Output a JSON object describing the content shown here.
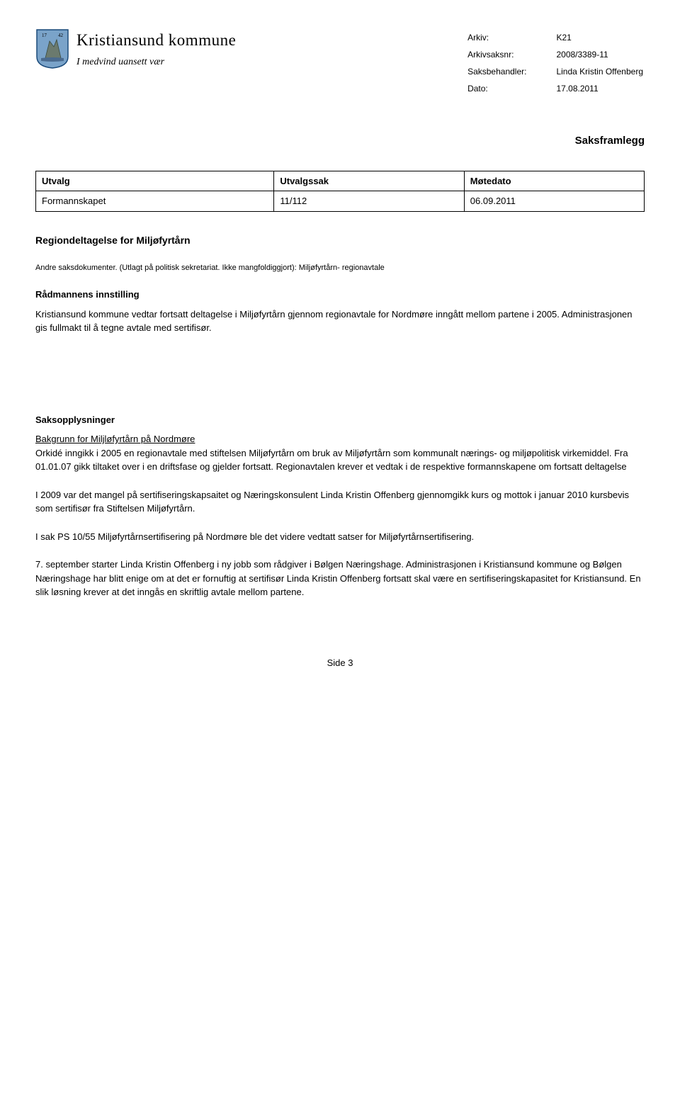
{
  "header": {
    "municipality_name": "Kristiansund kommune",
    "tagline": "I medvind uansett vær",
    "crest": {
      "shield_color": "#7aa3c9",
      "border_color": "#1a4a7a",
      "rock_color": "#6b7a6e",
      "year_left": "17",
      "year_right": "42"
    }
  },
  "meta": {
    "rows": [
      {
        "label": "Arkiv:",
        "value": "K21"
      },
      {
        "label": "Arkivsaksnr:",
        "value": "2008/3389-11"
      },
      {
        "label": "Saksbehandler:",
        "value": "Linda Kristin Offenberg"
      },
      {
        "label": "Dato:",
        "value": "17.08.2011"
      }
    ]
  },
  "doc_title": "Saksframlegg",
  "utvalg_table": {
    "headers": [
      "Utvalg",
      "Utvalgssak",
      "Møtedato"
    ],
    "rows": [
      [
        "Formannskapet",
        "11/112",
        "06.09.2011"
      ]
    ]
  },
  "case_title": "Regiondeltagelse for Miljøfyrtårn",
  "other_docs": "Andre saksdokumenter. (Utlagt på politisk sekretariat. Ikke mangfoldiggjort): Miljøfyrtårn- regionavtale",
  "radmann_title": "Rådmannens innstilling",
  "radmann_text": "Kristiansund kommune vedtar fortsatt deltagelse i Miljøfyrtårn gjennom regionavtale for Nordmøre inngått mellom partene i 2005. Administrasjonen gis fullmakt til å tegne avtale med sertifisør.",
  "saksopp_title": "Saksopplysninger",
  "bakgrunn_title": "Bakgrunn for Miljløfyrtårn på Nordmøre",
  "paragraphs": [
    "Orkidé inngikk i 2005 en regionavtale med stiftelsen Miljøfyrtårn om bruk av Miljøfyrtårn som kommunalt nærings- og miljøpolitisk virkemiddel. Fra 01.01.07 gikk tiltaket over i en driftsfase og gjelder fortsatt. Regionavtalen krever et vedtak i de respektive formannskapene om fortsatt deltagelse",
    "I 2009 var det mangel på sertifiseringskapsaitet og Næringskonsulent Linda Kristin Offenberg gjennomgikk kurs og mottok i januar 2010 kursbevis som sertifisør fra Stiftelsen Miljøfyrtårn.",
    "I sak PS 10/55 Miljøfyrtårnsertifisering på Nordmøre ble det videre vedtatt satser for Miljøfyrtårnsertifisering.",
    "7. september starter Linda Kristin Offenberg i ny jobb som rådgiver i Bølgen Næringshage. Administrasjonen i Kristiansund kommune og Bølgen Næringshage har blitt enige om at det er fornuftig at sertifisør Linda Kristin Offenberg fortsatt skal være en sertifiseringskapasitet for Kristiansund. En slik løsning krever at det inngås en skriftlig avtale mellom partene."
  ],
  "page_number": "Side 3"
}
